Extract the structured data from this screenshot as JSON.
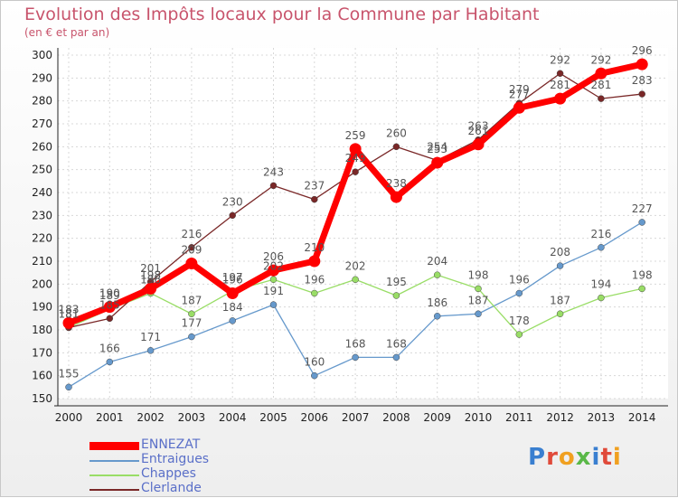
{
  "title": "Evolution des Impôts locaux pour la Commune par Habitant",
  "subtitle": "(en € et par an)",
  "logo_text": "Proxiti",
  "chart_data": {
    "type": "line",
    "title": "Evolution des Impôts locaux pour la Commune par Habitant",
    "subtitle": "(en € et par an)",
    "x": [
      "2000",
      "2001",
      "2002",
      "2003",
      "2004",
      "2005",
      "2006",
      "2007",
      "2008",
      "2009",
      "2010",
      "2011",
      "2012",
      "2013",
      "2014"
    ],
    "ylim": [
      150,
      300
    ],
    "yticks": [
      150,
      160,
      170,
      180,
      190,
      200,
      210,
      220,
      230,
      240,
      250,
      260,
      270,
      280,
      290,
      300
    ],
    "grid": true,
    "legend_position": "bottom-left",
    "series": [
      {
        "name": "ENNEZAT",
        "color": "#ff0000",
        "values": [
          183,
          190,
          198,
          209,
          196,
          206,
          210,
          259,
          238,
          253,
          261,
          277,
          281,
          292,
          296
        ]
      },
      {
        "name": "Entraigues",
        "color": "#6699cc",
        "values": [
          155,
          166,
          171,
          177,
          184,
          191,
          160,
          168,
          168,
          186,
          187,
          196,
          208,
          216,
          227
        ]
      },
      {
        "name": "Chappes",
        "color": "#99dd66",
        "values": [
          181,
          189,
          196,
          187,
          197,
          202,
          196,
          202,
          195,
          204,
          198,
          178,
          187,
          194,
          198
        ]
      },
      {
        "name": "Clerlande",
        "color": "#7a2828",
        "values": [
          181,
          185,
          201,
          216,
          230,
          243,
          237,
          249,
          260,
          254,
          263,
          279,
          292,
          281,
          283
        ]
      }
    ]
  }
}
